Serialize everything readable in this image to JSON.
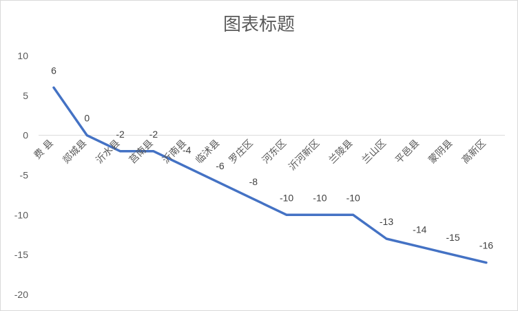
{
  "chart_data": {
    "type": "line",
    "title": "图表标题",
    "xlabel": "",
    "ylabel": "",
    "categories": [
      "费 县",
      "郯城县",
      "沂水县",
      "莒南县",
      "沂南县",
      "临沭县",
      "罗庄区",
      "河东区",
      "沂河新区",
      "兰陵县",
      "兰山区",
      "平邑县",
      "蒙阴县",
      "高新区"
    ],
    "series": [
      {
        "values": [
          6,
          0,
          -2,
          -2,
          -4,
          -6,
          -8,
          -10,
          -10,
          -10,
          -13,
          -14,
          -15,
          -16
        ],
        "color": "#4472C4"
      }
    ],
    "ylim": [
      -20,
      10
    ],
    "yticks": [
      10,
      5,
      0,
      -5,
      -10,
      -15,
      -20
    ],
    "grid": false,
    "data_labels": true,
    "legend": "none"
  }
}
